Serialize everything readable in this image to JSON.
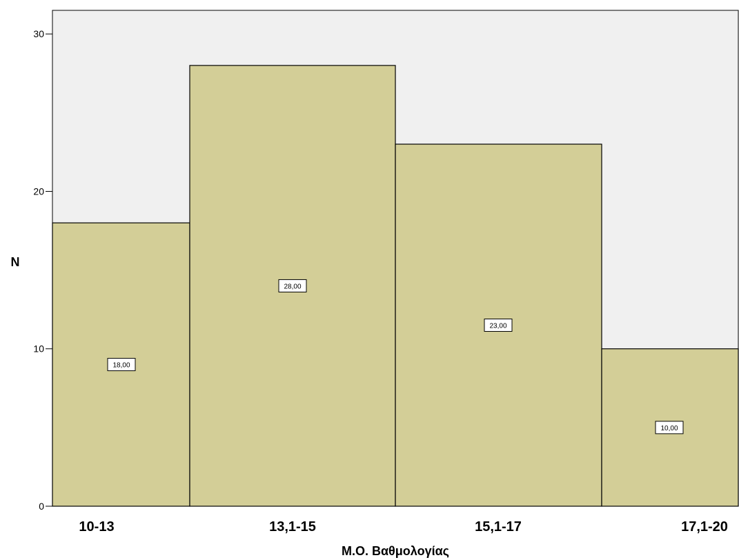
{
  "chart_data": {
    "type": "bar",
    "categories": [
      "10-13",
      "13,1-15",
      "15,1-17",
      "17,1-20"
    ],
    "values": [
      18,
      28,
      23,
      10
    ],
    "data_labels": [
      "18,00",
      "28,00",
      "23,00",
      "10,00"
    ],
    "xlabel": "Μ.Ο. Βαθμολογίας",
    "ylabel": "N",
    "ylim": [
      0,
      31.5
    ],
    "yticks": [
      0,
      10,
      20,
      30
    ],
    "ytick_labels": [
      "0",
      "10",
      "20",
      "30"
    ],
    "grid": false,
    "bar_gap": false,
    "colors": {
      "plot_background": "#f0f0f0",
      "bar_fill": "#d3ce97",
      "bar_stroke": "#000000"
    }
  }
}
